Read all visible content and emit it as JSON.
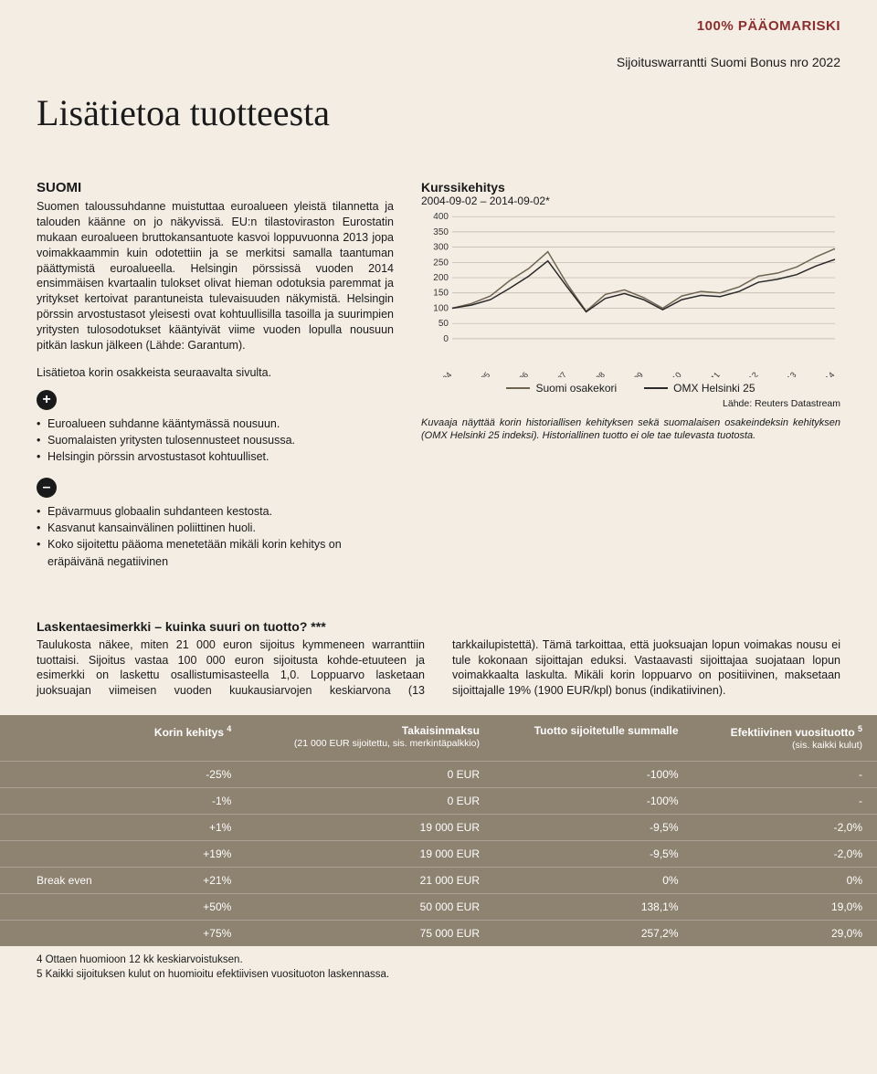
{
  "header": {
    "risk_badge": "100% PÄÄOMARISKI",
    "subtitle": "Sijoituswarrantti Suomi Bonus nro 2022",
    "title": "Lisätietoa tuotteesta"
  },
  "left": {
    "country_head": "SUOMI",
    "body": "Suomen taloussuhdanne muistuttaa euroalueen yleistä tilannetta ja talouden käänne on jo näkyvissä. EU:n tilastoviraston Eurostatin mukaan euroalueen bruttokansantuote kasvoi loppuvuonna 2013 jopa voimakkaammin kuin odotettiin ja se merkitsi samalla taantuman päättymistä euroalueella. Helsingin pörssissä vuoden 2014 ensimmäisen kvartaalin tulokset olivat hieman odotuksia paremmat ja yritykset kertoivat parantuneista tulevaisuuden näkymistä. Helsingin pörssin arvostustasot yleisesti ovat kohtuullisilla tasoilla ja suurimpien yritysten tulosodotukset kääntyivät viime vuoden lopulla nousuun pitkän laskun jälkeen (Lähde: Garantum).",
    "more": "Lisätietoa korin osakkeista seuraavalta sivulta.",
    "plus": [
      "Euroalueen suhdanne kääntymässä nousuun.",
      "Suomalaisten yritysten tulosennusteet nousussa.",
      "Helsingin pörssin arvostustasot kohtuulliset."
    ],
    "minus": [
      "Epävarmuus globaalin suhdanteen kestosta.",
      "Kasvanut kansainvälinen poliittinen huoli.",
      "Koko sijoitettu pääoma menetetään mikäli korin kehitys on eräpäivänä negatiivinen"
    ]
  },
  "chart": {
    "title": "Kurssikehitys",
    "date_range": "2004-09-02 – 2014-09-02*",
    "ylim": [
      0,
      400
    ],
    "ytick_step": 50,
    "yticks": [
      "400",
      "350",
      "300",
      "250",
      "200",
      "150",
      "100",
      "50",
      "0"
    ],
    "xticks": [
      "syyskuu/04",
      "syyskuu/05",
      "syyskuu/06",
      "syyskuu/07",
      "syyskuu/08",
      "syyskuu/09",
      "syyskuu/10",
      "syyskuu/11",
      "syyskuu/12",
      "syyskuu/13",
      "syyskuu/14"
    ],
    "series": [
      {
        "name": "Suomi osakekori",
        "color": "#6f6452",
        "values": [
          100,
          115,
          140,
          190,
          230,
          285,
          180,
          90,
          145,
          160,
          135,
          100,
          140,
          155,
          150,
          170,
          205,
          215,
          235,
          268,
          295
        ]
      },
      {
        "name": "OMX Helsinki 25",
        "color": "#2a2a2a",
        "values": [
          100,
          110,
          128,
          165,
          205,
          255,
          170,
          88,
          132,
          148,
          128,
          95,
          128,
          142,
          138,
          155,
          185,
          195,
          210,
          238,
          260
        ]
      }
    ],
    "background_color": "#f3ede4",
    "grid_color": "#bcb3a4",
    "line_width": 1.5,
    "source": "Lähde: Reuters Datastream",
    "caption": "Kuvaaja näyttää korin historiallisen kehityksen sekä suomalaisen osakeindeksin kehityksen (OMX Helsinki 25 indeksi). Historiallinen tuotto ei ole tae tulevasta tuotosta."
  },
  "calc": {
    "heading": "Laskentaesimerkki – kuinka suuri on tuotto? ***",
    "text": "Taulukosta näkee, miten 21 000 euron sijoitus kymmeneen warranttiin tuottaisi. Sijoitus vastaa 100 000 euron sijoitusta kohde-etuuteen ja esimerkki on laskettu osallistumisasteella 1,0. Loppuarvo lasketaan juoksuajan viimeisen vuoden kuukausiarvojen keskiarvona (13 tarkkailupistettä). Tämä tarkoittaa, että juoksuajan lopun voimakas nousu ei tule kokonaan sijoittajan eduksi. Vastaavasti sijoittajaa suojataan lopun voimakkaalta laskulta. Mikäli korin loppuarvo on positiivinen, maksetaan sijoittajalle 19% (1900 EUR/kpl) bonus (indikatiivinen)."
  },
  "table": {
    "header_bg": "#8e8270",
    "columns": [
      {
        "main": "",
        "sub": ""
      },
      {
        "main": "Korin kehitys",
        "sub": "",
        "sup": "4"
      },
      {
        "main": "Takaisinmaksu",
        "sub": "(21 000 EUR sijoitettu, sis. merkintäpalkkio)"
      },
      {
        "main": "Tuotto sijoitetulle summalle",
        "sub": ""
      },
      {
        "main": "Efektiivinen vuosituotto",
        "sub": "(sis. kaikki kulut)",
        "sup": "5"
      }
    ],
    "rows": [
      {
        "label": "",
        "cells": [
          "-25%",
          "0 EUR",
          "-100%",
          "-"
        ]
      },
      {
        "label": "",
        "cells": [
          "-1%",
          "0 EUR",
          "-100%",
          "-"
        ]
      },
      {
        "label": "",
        "cells": [
          "+1%",
          "19 000 EUR",
          "-9,5%",
          "-2,0%"
        ]
      },
      {
        "label": "",
        "cells": [
          "+19%",
          "19 000 EUR",
          "-9,5%",
          "-2,0%"
        ]
      },
      {
        "label": "Break even",
        "cells": [
          "+21%",
          "21 000 EUR",
          "0%",
          "0%"
        ]
      },
      {
        "label": "",
        "cells": [
          "+50%",
          "50 000 EUR",
          "138,1%",
          "19,0%"
        ]
      },
      {
        "label": "",
        "cells": [
          "+75%",
          "75 000 EUR",
          "257,2%",
          "29,0%"
        ]
      }
    ]
  },
  "footnotes": [
    "4 Ottaen huomioon 12 kk keskiarvoistuksen.",
    "5 Kaikki sijoituksen kulut on huomioitu efektiivisen vuosituoton laskennassa."
  ]
}
